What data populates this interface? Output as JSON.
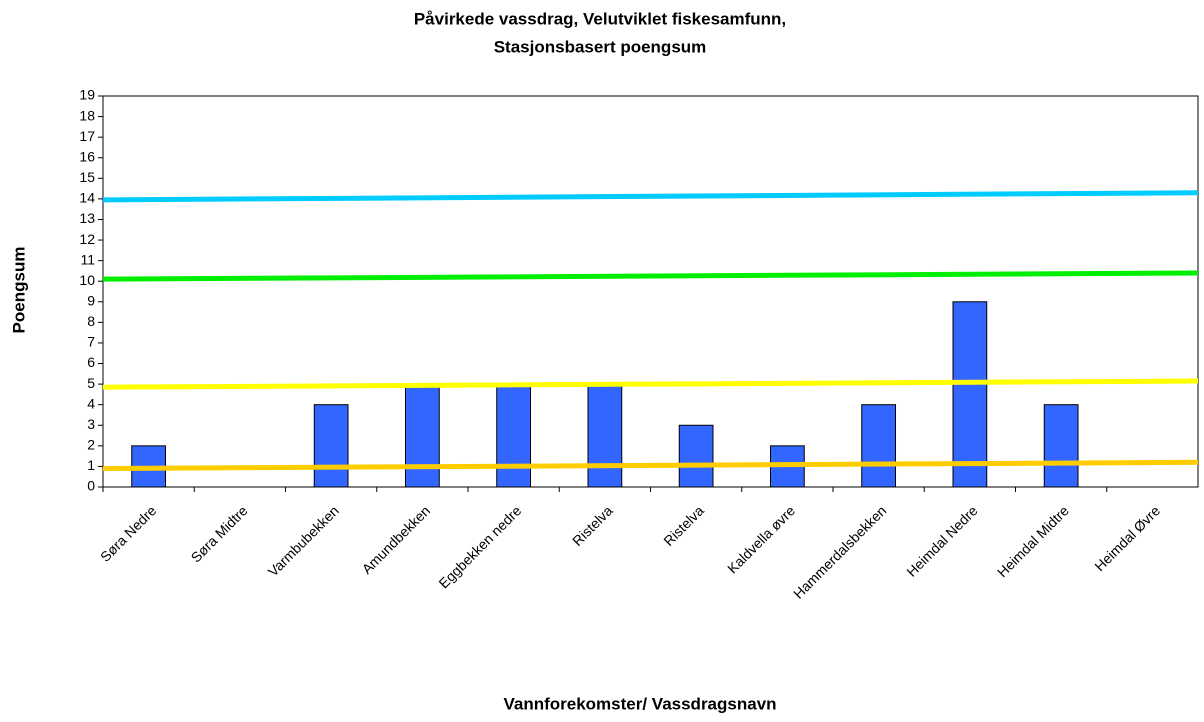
{
  "chart_data": {
    "type": "bar",
    "title": [
      "Påvirkede vassdrag, Velutviklet fiskesamfunn,",
      "Stasjonsbasert poengsum"
    ],
    "ylabel": "Poengsum",
    "xlabel": "Vannforekomster/ Vassdragsnavn",
    "categories": [
      "Søra Nedre",
      "Søra Midtre",
      "Varmbubekken",
      "Amundbekken",
      "Eggbekken nedre",
      "Ristelva",
      "Ristelva",
      "Kaldvella øvre",
      "Hammerdalsbekken",
      "Heimdal Nedre",
      "Heimdal Midtre",
      "Heimdal Øvre"
    ],
    "values": [
      2,
      0,
      4,
      5,
      5,
      5,
      3,
      2,
      4,
      9,
      4,
      0
    ],
    "color": "#3366ff",
    "reference_lines": [
      {
        "color": "#00ccff",
        "values": [
          13.95,
          14.3
        ]
      },
      {
        "color": "#00ee00",
        "values": [
          10.1,
          10.4
        ]
      },
      {
        "color": "#ffff00",
        "values": [
          4.85,
          5.15
        ]
      },
      {
        "color": "#ffcc00",
        "values": [
          0.9,
          1.2
        ]
      }
    ],
    "ylim": [
      0,
      19
    ],
    "yticks": [
      0,
      1,
      2,
      3,
      4,
      5,
      6,
      7,
      8,
      9,
      10,
      11,
      12,
      13,
      14,
      15,
      16,
      17,
      18,
      19
    ]
  }
}
